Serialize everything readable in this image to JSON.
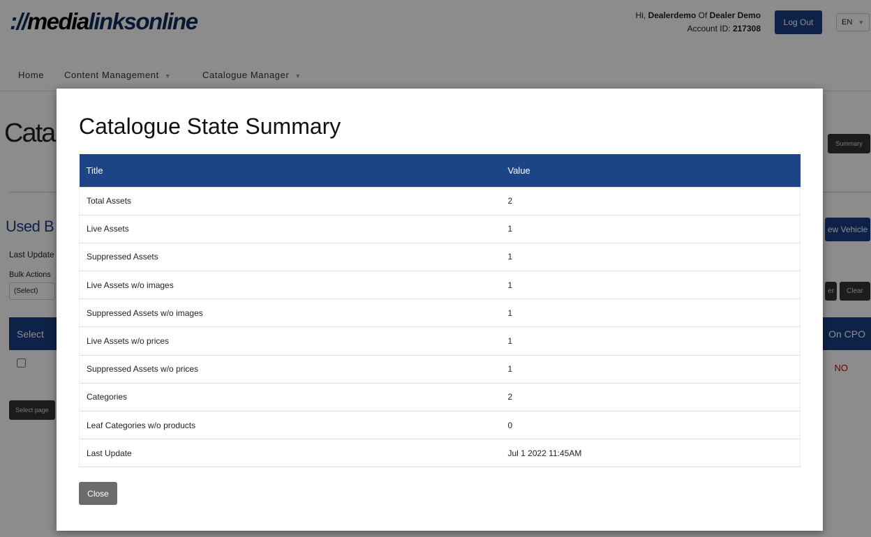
{
  "header": {
    "logo_prefix": "://",
    "logo_media": "media",
    "logo_links": "linksonline",
    "greeting": "Hi, ",
    "username": "Dealerdemo",
    "of": " Of ",
    "dealer": "Dealer Demo",
    "account_label": "Account ID: ",
    "account_id": "217308",
    "logout": "Log Out",
    "language": "EN"
  },
  "nav": [
    {
      "label": "Home"
    },
    {
      "label": "Content Management"
    },
    {
      "label": "Catalogue Manager"
    }
  ],
  "background": {
    "title": "Cata",
    "section": "Used B",
    "last_update": "Last Update",
    "bulk_actions": "Bulk Actions",
    "select_value": "(Select)",
    "col_select": "Select",
    "col_cpo": "On CPO",
    "cpo_value": "NO",
    "summary_btn": "Summary",
    "new_vehicle": "ew Vehicle",
    "filter_btn": "er",
    "clear_btn": "Clear",
    "select_page": "Select page"
  },
  "modal": {
    "title": "Catalogue State Summary",
    "columns": [
      "Title",
      "Value"
    ],
    "rows": [
      [
        "Total Assets",
        "2"
      ],
      [
        "Live Assets",
        "1"
      ],
      [
        "Suppressed Assets",
        "1"
      ],
      [
        "Live Assets w/o images",
        "1"
      ],
      [
        "Suppressed Assets w/o images",
        "1"
      ],
      [
        "Live Assets w/o prices",
        "1"
      ],
      [
        "Suppressed Assets w/o prices",
        "1"
      ],
      [
        "Categories",
        "2"
      ],
      [
        "Leaf Categories w/o products",
        "0"
      ],
      [
        "Last Update",
        "Jul 1 2022 11:45AM"
      ]
    ],
    "close": "Close"
  }
}
